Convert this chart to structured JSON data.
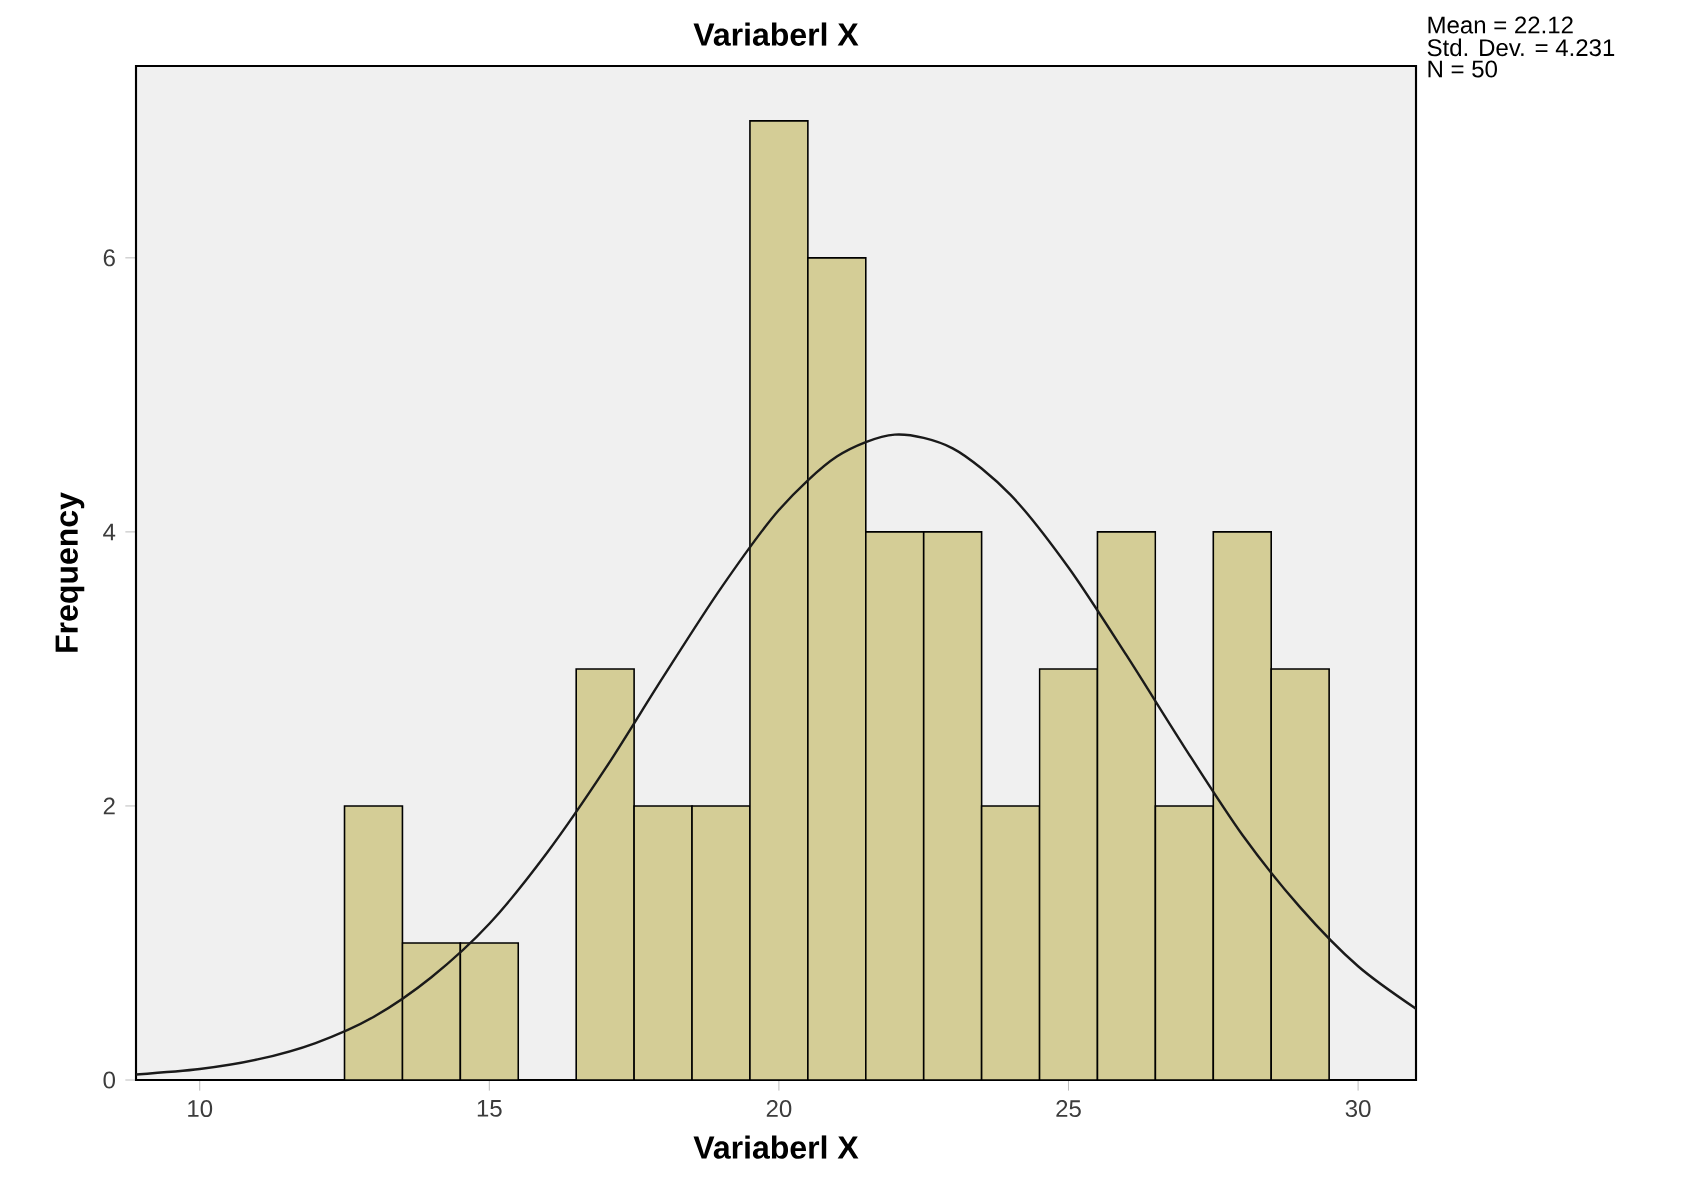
{
  "chart_data": {
    "type": "histogram",
    "title": "Variaberl X",
    "xlabel": "Variaberl X",
    "ylabel": "Frequency",
    "bins": [
      12.5,
      13.5,
      14.5,
      15.5,
      16.5,
      17.5,
      18.5,
      19.5,
      20.5,
      21.5,
      22.5,
      23.5,
      24.5,
      25.5,
      26.5,
      27.5,
      28.5,
      29.5
    ],
    "values": [
      2,
      1,
      1,
      0,
      3,
      2,
      2,
      7,
      6,
      4,
      4,
      2,
      3,
      4,
      2,
      4,
      3
    ],
    "color": "#d4cd96",
    "series": [
      {
        "type": "line",
        "color": "#1a1a1a",
        "x": [
          8.9,
          10,
          11,
          12,
          13,
          14,
          15,
          16,
          17,
          18,
          19,
          20,
          21,
          22,
          23,
          24,
          25,
          26,
          27,
          28,
          29,
          30,
          31
        ],
        "values": [
          0.04,
          0.08,
          0.15,
          0.27,
          0.46,
          0.75,
          1.14,
          1.66,
          2.27,
          2.94,
          3.59,
          4.16,
          4.55,
          4.71,
          4.61,
          4.27,
          3.74,
          3.1,
          2.43,
          1.79,
          1.26,
          0.83,
          0.52
        ]
      }
    ],
    "xlim": [
      8.9,
      31
    ],
    "ylim": [
      0,
      7.4
    ],
    "xticks": [
      10,
      15,
      20,
      25,
      30
    ],
    "yticks": [
      0,
      2,
      4,
      6
    ],
    "annotations": [
      "Mean = 22.12",
      "Std. Dev. = 4.231",
      "N = 50"
    ]
  }
}
